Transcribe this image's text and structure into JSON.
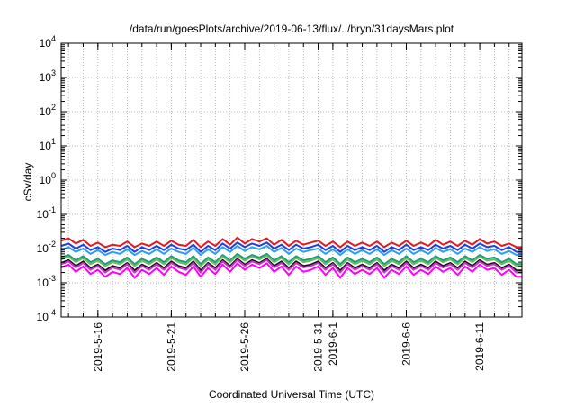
{
  "chart_data": {
    "type": "line",
    "title": "/data/run/goesPlots/archive/2019-06-13/flux/../bryn/31daysMars.plot",
    "xlabel": "Coordinated Universal Time (UTC)",
    "ylabel": "cSv/day",
    "y_scale": "log",
    "ylim": [
      0.0001,
      10000
    ],
    "y_ticks": [
      {
        "mantissa": "10",
        "exp": "-4",
        "value": 0.0001
      },
      {
        "mantissa": "10",
        "exp": "-3",
        "value": 0.001
      },
      {
        "mantissa": "10",
        "exp": "-2",
        "value": 0.01
      },
      {
        "mantissa": "10",
        "exp": "-1",
        "value": 0.1
      },
      {
        "mantissa": "10",
        "exp": "0",
        "value": 1
      },
      {
        "mantissa": "10",
        "exp": "1",
        "value": 10
      },
      {
        "mantissa": "10",
        "exp": "2",
        "value": 100
      },
      {
        "mantissa": "10",
        "exp": "3",
        "value": 1000
      },
      {
        "mantissa": "10",
        "exp": "4",
        "value": 10000
      }
    ],
    "xlim": [
      "2019-05-13T12:00",
      "2019-06-13T21:00"
    ],
    "x_tick_labels": [
      "2019-5-16",
      "2019-5-21",
      "2019-5-26",
      "2019-5-31",
      "2019-6-1",
      "2019-6-6",
      "2019-6-11"
    ],
    "x_ticks": [
      "2019-05-16",
      "2019-05-21",
      "2019-05-26",
      "2019-05-31",
      "2019-06-01",
      "2019-06-06",
      "2019-06-11"
    ],
    "x_minor_ticks": [
      "2019-05-14",
      "2019-05-15",
      "2019-05-16",
      "2019-05-17",
      "2019-05-18",
      "2019-05-19",
      "2019-05-20",
      "2019-05-21",
      "2019-05-22",
      "2019-05-23",
      "2019-05-24",
      "2019-05-25",
      "2019-05-26",
      "2019-05-27",
      "2019-05-28",
      "2019-05-29",
      "2019-05-30",
      "2019-05-31",
      "2019-06-01",
      "2019-06-02",
      "2019-06-03",
      "2019-06-04",
      "2019-06-05",
      "2019-06-06",
      "2019-06-07",
      "2019-06-08",
      "2019-06-09",
      "2019-06-10",
      "2019-06-11",
      "2019-06-12",
      "2019-06-13"
    ],
    "grid": true,
    "legend": "none",
    "x": [
      "2019-05-13T12:00",
      "2019-05-14T00:00",
      "2019-05-14T12:00",
      "2019-05-15T00:00",
      "2019-05-15T12:00",
      "2019-05-16T00:00",
      "2019-05-16T12:00",
      "2019-05-17T00:00",
      "2019-05-17T12:00",
      "2019-05-18T00:00",
      "2019-05-18T12:00",
      "2019-05-19T00:00",
      "2019-05-19T12:00",
      "2019-05-20T00:00",
      "2019-05-20T12:00",
      "2019-05-21T00:00",
      "2019-05-21T12:00",
      "2019-05-22T00:00",
      "2019-05-22T12:00",
      "2019-05-23T00:00",
      "2019-05-23T12:00",
      "2019-05-24T00:00",
      "2019-05-24T12:00",
      "2019-05-25T00:00",
      "2019-05-25T12:00",
      "2019-05-26T00:00",
      "2019-05-26T12:00",
      "2019-05-27T00:00",
      "2019-05-27T12:00",
      "2019-05-28T00:00",
      "2019-05-28T12:00",
      "2019-05-29T00:00",
      "2019-05-29T12:00",
      "2019-05-30T00:00",
      "2019-05-30T12:00",
      "2019-05-31T00:00",
      "2019-05-31T12:00",
      "2019-06-01T00:00",
      "2019-06-01T12:00",
      "2019-06-02T00:00",
      "2019-06-02T12:00",
      "2019-06-03T00:00",
      "2019-06-03T12:00",
      "2019-06-04T00:00",
      "2019-06-04T12:00",
      "2019-06-05T00:00",
      "2019-06-05T12:00",
      "2019-06-06T00:00",
      "2019-06-06T12:00",
      "2019-06-07T00:00",
      "2019-06-07T12:00",
      "2019-06-08T00:00",
      "2019-06-08T12:00",
      "2019-06-09T00:00",
      "2019-06-09T12:00",
      "2019-06-10T00:00",
      "2019-06-10T12:00",
      "2019-06-11T00:00",
      "2019-06-11T12:00",
      "2019-06-12T00:00",
      "2019-06-12T12:00",
      "2019-06-13T00:00",
      "2019-06-13T12:00",
      "2019-06-13T21:00"
    ],
    "series": [
      {
        "color": "#e41a1c",
        "values": [
          0.017,
          0.02,
          0.014,
          0.018,
          0.012,
          0.015,
          0.011,
          0.013,
          0.012,
          0.016,
          0.011,
          0.014,
          0.012,
          0.016,
          0.012,
          0.017,
          0.013,
          0.012,
          0.018,
          0.011,
          0.016,
          0.012,
          0.019,
          0.013,
          0.021,
          0.014,
          0.019,
          0.016,
          0.02,
          0.013,
          0.018,
          0.012,
          0.017,
          0.013,
          0.015,
          0.017,
          0.012,
          0.016,
          0.011,
          0.016,
          0.012,
          0.015,
          0.012,
          0.016,
          0.011,
          0.015,
          0.012,
          0.017,
          0.012,
          0.015,
          0.012,
          0.018,
          0.013,
          0.016,
          0.012,
          0.017,
          0.013,
          0.019,
          0.014,
          0.016,
          0.012,
          0.014,
          0.011,
          0.011
        ]
      },
      {
        "color": "#1f3fd9",
        "values": [
          0.012,
          0.014,
          0.01,
          0.013,
          0.009,
          0.011,
          0.008,
          0.01,
          0.009,
          0.012,
          0.008,
          0.011,
          0.009,
          0.012,
          0.009,
          0.013,
          0.01,
          0.009,
          0.013,
          0.008,
          0.012,
          0.009,
          0.014,
          0.01,
          0.015,
          0.011,
          0.014,
          0.012,
          0.015,
          0.01,
          0.013,
          0.009,
          0.013,
          0.01,
          0.011,
          0.013,
          0.009,
          0.012,
          0.008,
          0.012,
          0.009,
          0.011,
          0.009,
          0.012,
          0.008,
          0.011,
          0.009,
          0.013,
          0.009,
          0.011,
          0.009,
          0.013,
          0.01,
          0.012,
          0.009,
          0.013,
          0.01,
          0.014,
          0.011,
          0.012,
          0.009,
          0.011,
          0.008,
          0.008
        ]
      },
      {
        "color": "#2a9df4",
        "values": [
          0.009,
          0.011,
          0.008,
          0.01,
          0.007,
          0.009,
          0.0065,
          0.008,
          0.007,
          0.0095,
          0.0065,
          0.0085,
          0.007,
          0.0095,
          0.007,
          0.01,
          0.008,
          0.007,
          0.0105,
          0.0065,
          0.0095,
          0.007,
          0.011,
          0.008,
          0.012,
          0.0085,
          0.011,
          0.0095,
          0.012,
          0.008,
          0.0105,
          0.007,
          0.01,
          0.008,
          0.009,
          0.01,
          0.007,
          0.0095,
          0.0065,
          0.0095,
          0.007,
          0.009,
          0.007,
          0.0095,
          0.0065,
          0.009,
          0.007,
          0.01,
          0.007,
          0.009,
          0.007,
          0.0105,
          0.008,
          0.0095,
          0.007,
          0.01,
          0.008,
          0.011,
          0.0085,
          0.0095,
          0.007,
          0.0085,
          0.0065,
          0.0065
        ]
      },
      {
        "color": "#1b9e77",
        "values": [
          0.0055,
          0.0065,
          0.0045,
          0.006,
          0.004,
          0.005,
          0.0035,
          0.0045,
          0.004,
          0.0055,
          0.0035,
          0.005,
          0.004,
          0.0055,
          0.004,
          0.006,
          0.0045,
          0.004,
          0.006,
          0.0035,
          0.0055,
          0.004,
          0.0065,
          0.0045,
          0.007,
          0.005,
          0.0065,
          0.0055,
          0.007,
          0.0045,
          0.006,
          0.004,
          0.006,
          0.0045,
          0.005,
          0.006,
          0.004,
          0.0055,
          0.0035,
          0.0055,
          0.004,
          0.005,
          0.004,
          0.0055,
          0.0035,
          0.005,
          0.004,
          0.006,
          0.004,
          0.005,
          0.004,
          0.006,
          0.0045,
          0.0055,
          0.004,
          0.006,
          0.0045,
          0.0065,
          0.005,
          0.0055,
          0.004,
          0.005,
          0.0035,
          0.0035
        ]
      },
      {
        "color": "#66bb66",
        "values": [
          0.0048,
          0.0058,
          0.004,
          0.0053,
          0.0035,
          0.0044,
          0.0031,
          0.004,
          0.0035,
          0.0048,
          0.0031,
          0.0044,
          0.0035,
          0.0048,
          0.0035,
          0.0053,
          0.004,
          0.0035,
          0.0053,
          0.0031,
          0.0048,
          0.0035,
          0.0058,
          0.004,
          0.0062,
          0.0044,
          0.0058,
          0.0048,
          0.0062,
          0.004,
          0.0053,
          0.0035,
          0.0053,
          0.004,
          0.0044,
          0.0053,
          0.0035,
          0.0048,
          0.0031,
          0.0048,
          0.0035,
          0.0044,
          0.0035,
          0.0048,
          0.0031,
          0.0044,
          0.0035,
          0.0053,
          0.0035,
          0.0044,
          0.0035,
          0.0053,
          0.004,
          0.0048,
          0.0035,
          0.0053,
          0.004,
          0.0058,
          0.0044,
          0.0048,
          0.0035,
          0.0044,
          0.0031,
          0.0031
        ]
      },
      {
        "color": "#111111",
        "values": [
          0.0038,
          0.0046,
          0.0031,
          0.0042,
          0.0027,
          0.0034,
          0.0023,
          0.0031,
          0.0027,
          0.0038,
          0.0023,
          0.0034,
          0.0027,
          0.0038,
          0.0027,
          0.0042,
          0.0031,
          0.0027,
          0.0042,
          0.0023,
          0.0038,
          0.0027,
          0.0046,
          0.0031,
          0.005,
          0.0034,
          0.0046,
          0.0038,
          0.005,
          0.0031,
          0.0042,
          0.0027,
          0.0042,
          0.0031,
          0.0034,
          0.0042,
          0.0027,
          0.0038,
          0.0023,
          0.0038,
          0.0027,
          0.0034,
          0.0027,
          0.0038,
          0.0023,
          0.0034,
          0.0027,
          0.0042,
          0.0027,
          0.0034,
          0.0027,
          0.0042,
          0.0031,
          0.0038,
          0.0027,
          0.0042,
          0.0031,
          0.0046,
          0.0034,
          0.0038,
          0.0027,
          0.0034,
          0.0023,
          0.0023
        ]
      },
      {
        "color": "#cc33cc",
        "values": [
          0.0035,
          0.0042,
          0.0028,
          0.0038,
          0.0024,
          0.0031,
          0.002,
          0.0028,
          0.0024,
          0.0035,
          0.002,
          0.0031,
          0.0024,
          0.0035,
          0.0024,
          0.0038,
          0.0028,
          0.0024,
          0.0038,
          0.002,
          0.0035,
          0.0024,
          0.0042,
          0.0028,
          0.0046,
          0.0031,
          0.0042,
          0.0035,
          0.0046,
          0.0028,
          0.0038,
          0.0024,
          0.0038,
          0.0028,
          0.0031,
          0.0038,
          0.0024,
          0.0035,
          0.002,
          0.0035,
          0.0024,
          0.0031,
          0.0024,
          0.0035,
          0.002,
          0.0031,
          0.0024,
          0.0038,
          0.0024,
          0.0031,
          0.0024,
          0.0038,
          0.0028,
          0.0035,
          0.0024,
          0.0038,
          0.0028,
          0.0042,
          0.0031,
          0.0035,
          0.0024,
          0.0031,
          0.002,
          0.002
        ]
      },
      {
        "color": "#ff00ff",
        "values": [
          0.0028,
          0.0034,
          0.0021,
          0.003,
          0.0018,
          0.0024,
          0.0015,
          0.0021,
          0.0018,
          0.0027,
          0.0014,
          0.0024,
          0.0018,
          0.0027,
          0.0017,
          0.003,
          0.0021,
          0.0017,
          0.003,
          0.0015,
          0.0027,
          0.0018,
          0.0034,
          0.0021,
          0.0037,
          0.0024,
          0.0034,
          0.0027,
          0.0037,
          0.0021,
          0.003,
          0.0017,
          0.003,
          0.0021,
          0.0024,
          0.003,
          0.0017,
          0.0027,
          0.0014,
          0.0027,
          0.0018,
          0.0024,
          0.0018,
          0.0027,
          0.0014,
          0.0024,
          0.0018,
          0.003,
          0.0017,
          0.0024,
          0.0018,
          0.003,
          0.0021,
          0.0027,
          0.0017,
          0.003,
          0.0021,
          0.0034,
          0.0024,
          0.0027,
          0.0017,
          0.0024,
          0.0015,
          0.0015
        ]
      }
    ]
  }
}
